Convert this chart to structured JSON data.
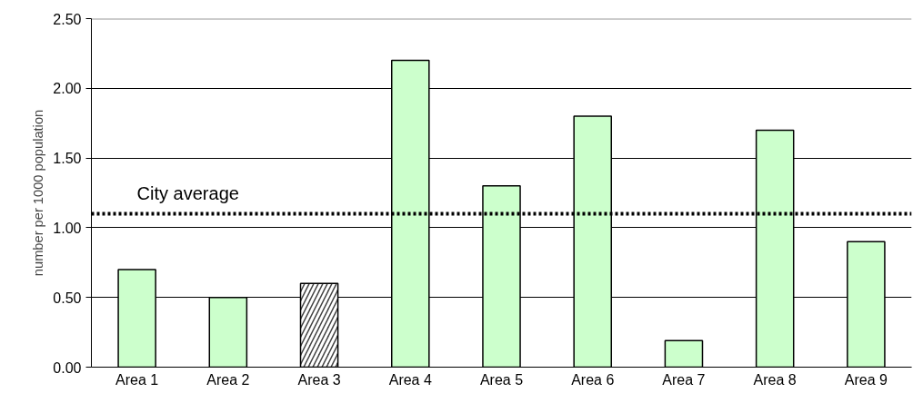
{
  "chart_data": {
    "type": "bar",
    "ylabel": "number per 1000 population",
    "categories": [
      "Area 1",
      "Area 2",
      "Area 3",
      "Area 4",
      "Area 5",
      "Area 6",
      "Area 7",
      "Area 8",
      "Area 9"
    ],
    "values": [
      0.7,
      0.5,
      0.6,
      2.2,
      1.3,
      1.8,
      0.19,
      1.7,
      0.9
    ],
    "colors": [
      "#ccffcc",
      "#ccffcc",
      "#404040",
      "#ccffcc",
      "#ccffcc",
      "#ccffcc",
      "#ccffcc",
      "#ccffcc",
      "#ccffcc"
    ],
    "ylim": [
      0,
      2.5
    ],
    "yticks": [
      {
        "value": 0,
        "label": "0.00"
      },
      {
        "value": 0.5,
        "label": "0.50"
      },
      {
        "value": 1,
        "label": "1.00"
      },
      {
        "value": 1.5,
        "label": "1.50"
      },
      {
        "value": 2,
        "label": "2.00"
      },
      {
        "value": 2.5,
        "label": "2.50"
      }
    ],
    "grid": "y",
    "ref_lines": [
      {
        "axis": "y",
        "value": 1.1,
        "label": "City average",
        "color": "#000000",
        "line_style": "dotted"
      }
    ]
  }
}
